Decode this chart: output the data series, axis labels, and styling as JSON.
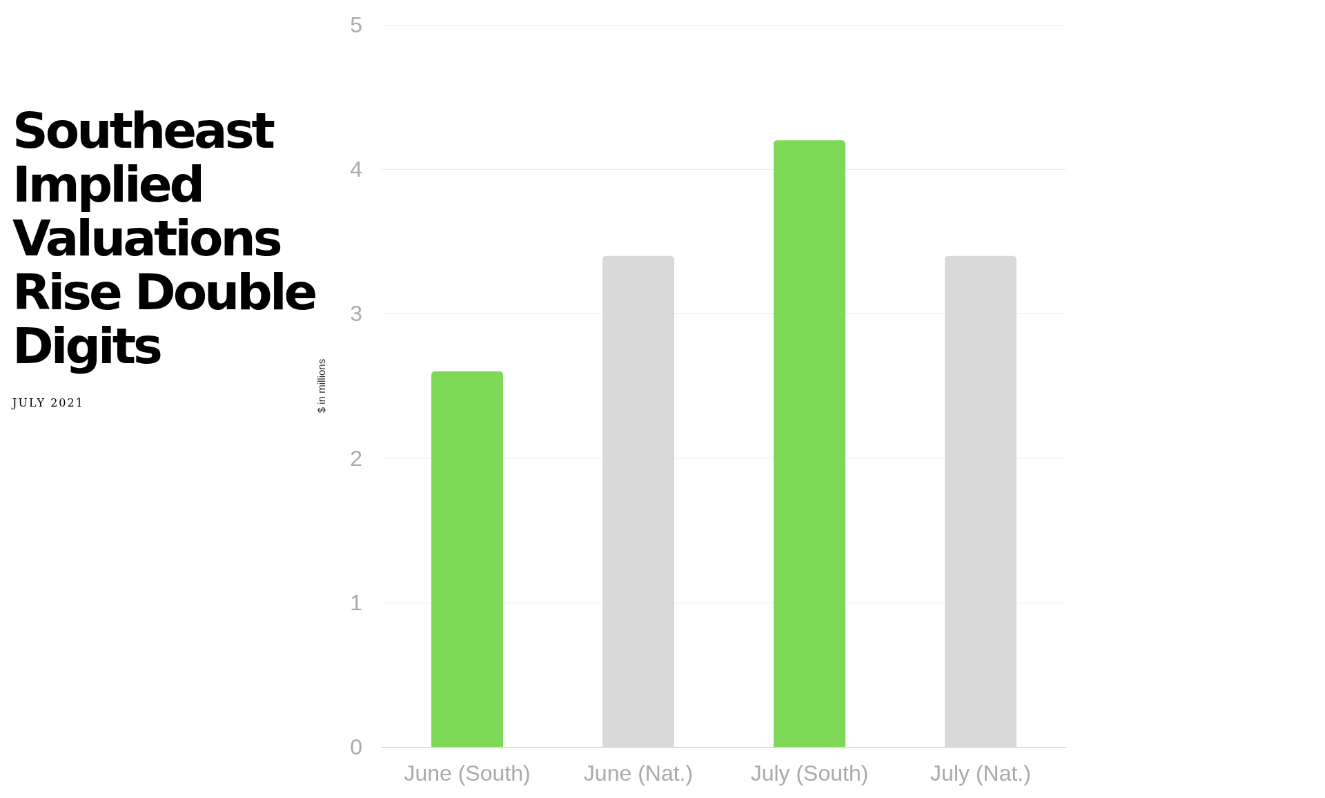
{
  "chart_data": {
    "type": "bar",
    "title": "Southeast Implied Valuations Rise Double Digits",
    "subtitle": "JULY 2021",
    "ylabel": "$ in millions",
    "categories": [
      "June (South)",
      "June (Nat.)",
      "July (South)",
      "July (Nat.)"
    ],
    "values": [
      2.6,
      3.4,
      4.2,
      3.4
    ],
    "colors": [
      "#7ed957",
      "#d9d9d9",
      "#7ed957",
      "#d9d9d9"
    ],
    "ylim": [
      0,
      5
    ],
    "yticks": [
      0,
      1,
      2,
      3,
      4,
      5
    ],
    "grid": "y"
  }
}
